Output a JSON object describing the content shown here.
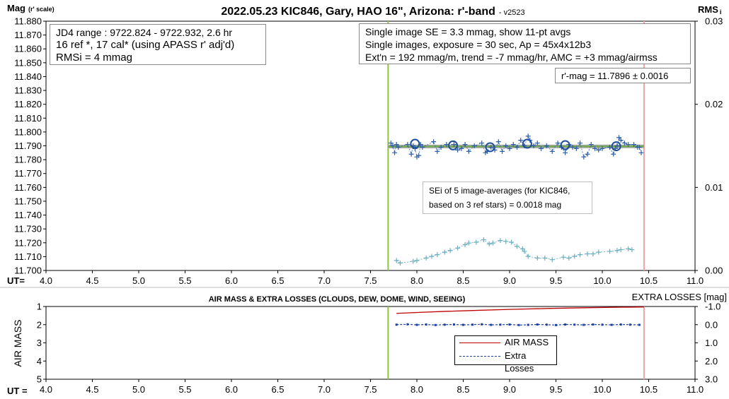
{
  "chart_data": [
    {
      "type": "scatter",
      "title": "2022.05.23 KIC846, Gary, HAO 16\", Arizona: r'-band",
      "title_suffix": "- v2523",
      "ylabel": "Mag",
      "ylabel_suffix": "(r' scale)",
      "y2label": "RMS",
      "y2label_suffix": "i",
      "xlabel": "UT=",
      "xlim": [
        4.0,
        11.0
      ],
      "ylim": [
        11.88,
        11.7
      ],
      "y2lim": [
        0.0,
        0.03
      ],
      "x_ticks": [
        "4.0",
        "4.5",
        "5.0",
        "5.5",
        "6.0",
        "6.5",
        "7.0",
        "7.5",
        "8.0",
        "8.5",
        "9.0",
        "9.5",
        "10.0",
        "10.5",
        "11.0"
      ],
      "y_ticks": [
        "11.700",
        "11.710",
        "11.720",
        "11.730",
        "11.740",
        "11.750",
        "11.760",
        "11.770",
        "11.780",
        "11.790",
        "11.800",
        "11.810",
        "11.820",
        "11.830",
        "11.840",
        "11.850",
        "11.860",
        "11.870",
        "11.880"
      ],
      "y2_ticks": [
        "0.03",
        "0.02",
        "0.01",
        "0.00"
      ],
      "vertical_markers": [
        {
          "x": 7.69,
          "color": "#8dc63f"
        },
        {
          "x": 10.45,
          "color": "#f4a3a8"
        }
      ],
      "fit_line": {
        "x": [
          7.69,
          10.45
        ],
        "y": [
          11.7895,
          11.7896
        ],
        "colors": [
          "#a6a6a6",
          "#70ad47"
        ]
      },
      "series": [
        {
          "name": "",
          "marker": "plus",
          "color": "#2e5fa7",
          "x": [
            7.72,
            7.74,
            7.76,
            7.78,
            7.8,
            7.9,
            7.94,
            7.96,
            7.98,
            8.0,
            8.02,
            8.04,
            8.06,
            8.18,
            8.22,
            8.26,
            8.32,
            8.4,
            8.44,
            8.48,
            8.52,
            8.56,
            8.62,
            8.7,
            8.74,
            8.76,
            8.8,
            8.84,
            8.88,
            8.92,
            8.96,
            9.0,
            9.04,
            9.08,
            9.12,
            9.16,
            9.2,
            9.22,
            9.26,
            9.3,
            9.34,
            9.4,
            9.46,
            9.52,
            9.56,
            9.6,
            9.64,
            9.68,
            9.72,
            9.76,
            9.8,
            9.84,
            9.88,
            9.92,
            9.96,
            10.0,
            10.08,
            10.12,
            10.14,
            10.16,
            10.18,
            10.2,
            10.24,
            10.28,
            10.34,
            10.38,
            10.4,
            10.42
          ],
          "y": [
            11.792,
            11.79,
            11.785,
            11.791,
            11.789,
            11.791,
            11.784,
            11.79,
            11.788,
            11.782,
            11.783,
            11.791,
            11.789,
            11.793,
            11.786,
            11.789,
            11.791,
            11.791,
            11.787,
            11.788,
            11.791,
            11.786,
            11.79,
            11.792,
            11.785,
            11.786,
            11.789,
            11.787,
            11.793,
            11.786,
            11.79,
            11.788,
            11.791,
            11.789,
            11.794,
            11.79,
            11.797,
            11.794,
            11.79,
            11.792,
            11.788,
            11.79,
            11.786,
            11.792,
            11.789,
            11.785,
            11.791,
            11.789,
            11.788,
            11.792,
            11.782,
            11.784,
            11.791,
            11.788,
            11.787,
            11.788,
            11.789,
            11.784,
            11.788,
            11.79,
            11.796,
            11.794,
            11.792,
            11.791,
            11.791,
            11.789,
            11.789,
            11.785
          ]
        },
        {
          "name": "",
          "marker": "circle",
          "color": "#1f4e9c",
          "x": [
            7.98,
            8.39,
            8.79,
            9.19,
            9.6,
            10.15
          ],
          "y": [
            11.7915,
            11.7903,
            11.789,
            11.7915,
            11.7905,
            11.7897
          ]
        },
        {
          "name": "",
          "marker": "plus",
          "color": "#6aaebf",
          "axis": "y2",
          "x": [
            7.78,
            7.82,
            7.96,
            8.0,
            8.1,
            8.16,
            8.22,
            8.3,
            8.36,
            8.44,
            8.52,
            8.56,
            8.64,
            8.72,
            8.78,
            8.82,
            8.9,
            8.96,
            9.02,
            9.08,
            9.14,
            9.16,
            9.2,
            9.3,
            9.38,
            9.46,
            9.58,
            9.64,
            9.7,
            9.76,
            9.84,
            9.9,
            9.96,
            10.08,
            10.16,
            10.2,
            10.28,
            10.32
          ],
          "y": [
            0.0012,
            0.0009,
            0.0011,
            0.0012,
            0.0015,
            0.0017,
            0.0019,
            0.0022,
            0.0024,
            0.0027,
            0.0031,
            0.0033,
            0.0034,
            0.0037,
            0.0032,
            0.0033,
            0.0036,
            0.0035,
            0.0034,
            0.0029,
            0.0026,
            0.0023,
            0.0017,
            0.0015,
            0.0015,
            0.0013,
            0.0016,
            0.0015,
            0.0017,
            0.0019,
            0.002,
            0.002,
            0.0022,
            0.0023,
            0.0024,
            0.0025,
            0.0026,
            0.0025
          ]
        }
      ],
      "annotations": {
        "box1": [
          "JD4 range : 9722.824 - 9722.932,  2.6  hr",
          "16 ref *, 17 cal* (using APASS r' adj'd)",
          "RMSi = 4 mmag"
        ],
        "box2": [
          "Single image SE = 3.3 mmag, show  11-pt avgs",
          "Single images, exposure = 30 sec, Ap = 45x4x12b3",
          "Ext'n = 192 mmag/m, trend = -7  mmag/hr, AMC = +3 mmag/airmss"
        ],
        "mag_box": "r'-mag = 11.7896 ± 0.0016",
        "sei": [
          "SEi of 5 image-averages (for KIC846,",
          "based on 3 ref stars) = 0.0018 mag"
        ]
      }
    },
    {
      "type": "line",
      "title": "AIR MASS & EXTRA LOSSES (CLOUDS, DEW, DOME, WIND, SEEING)",
      "ylabel": "AIR MASS",
      "y2label": "EXTRA LOSSES [mag]",
      "xlabel": "UT =",
      "xlim": [
        4.0,
        11.0
      ],
      "ylim": [
        1,
        5
      ],
      "y2lim": [
        3.0,
        -1.0
      ],
      "x_ticks": [
        "4.0",
        "4.5",
        "5.0",
        "5.5",
        "6.0",
        "6.5",
        "7.0",
        "7.5",
        "8.0",
        "8.5",
        "9.0",
        "9.5",
        "10.0",
        "10.5",
        "11.0"
      ],
      "y_ticks": [
        "5",
        "4",
        "3",
        "2",
        "1"
      ],
      "y2_ticks": [
        "-1.0",
        "0.0",
        "1.0",
        "2.0",
        "3.0"
      ],
      "vertical_markers": [
        {
          "x": 7.69,
          "color": "#8dc63f"
        },
        {
          "x": 10.45,
          "color": "#f4a3a8"
        }
      ],
      "legend": {
        "position": "center",
        "entries": [
          "AIR MASS",
          "Extra Losses"
        ]
      },
      "series": [
        {
          "name": "AIR MASS",
          "color": "#c00000",
          "x": [
            7.78,
            8.0,
            8.3,
            8.6,
            9.0,
            9.4,
            9.8,
            10.2,
            10.45
          ],
          "y": [
            1.38,
            1.33,
            1.27,
            1.22,
            1.16,
            1.11,
            1.07,
            1.04,
            1.03
          ]
        },
        {
          "name": "Extra Losses",
          "color": "#1f3fa0",
          "axis": "y2",
          "x": [
            7.78,
            7.9,
            8.0,
            8.1,
            8.2,
            8.3,
            8.4,
            8.5,
            8.6,
            8.7,
            8.8,
            8.9,
            9.0,
            9.1,
            9.2,
            9.3,
            9.4,
            9.5,
            9.6,
            9.7,
            9.8,
            9.9,
            10.0,
            10.1,
            10.2,
            10.3,
            10.4
          ],
          "y": [
            0.0,
            -0.02,
            0.01,
            -0.01,
            0.02,
            0.0,
            -0.01,
            0.01,
            0.0,
            -0.02,
            0.01,
            0.0,
            -0.01,
            0.02,
            0.01,
            -0.01,
            0.0,
            0.02,
            -0.01,
            0.0,
            0.01,
            -0.01,
            0.0,
            0.01,
            -0.01,
            0.0,
            0.01
          ]
        }
      ]
    }
  ]
}
